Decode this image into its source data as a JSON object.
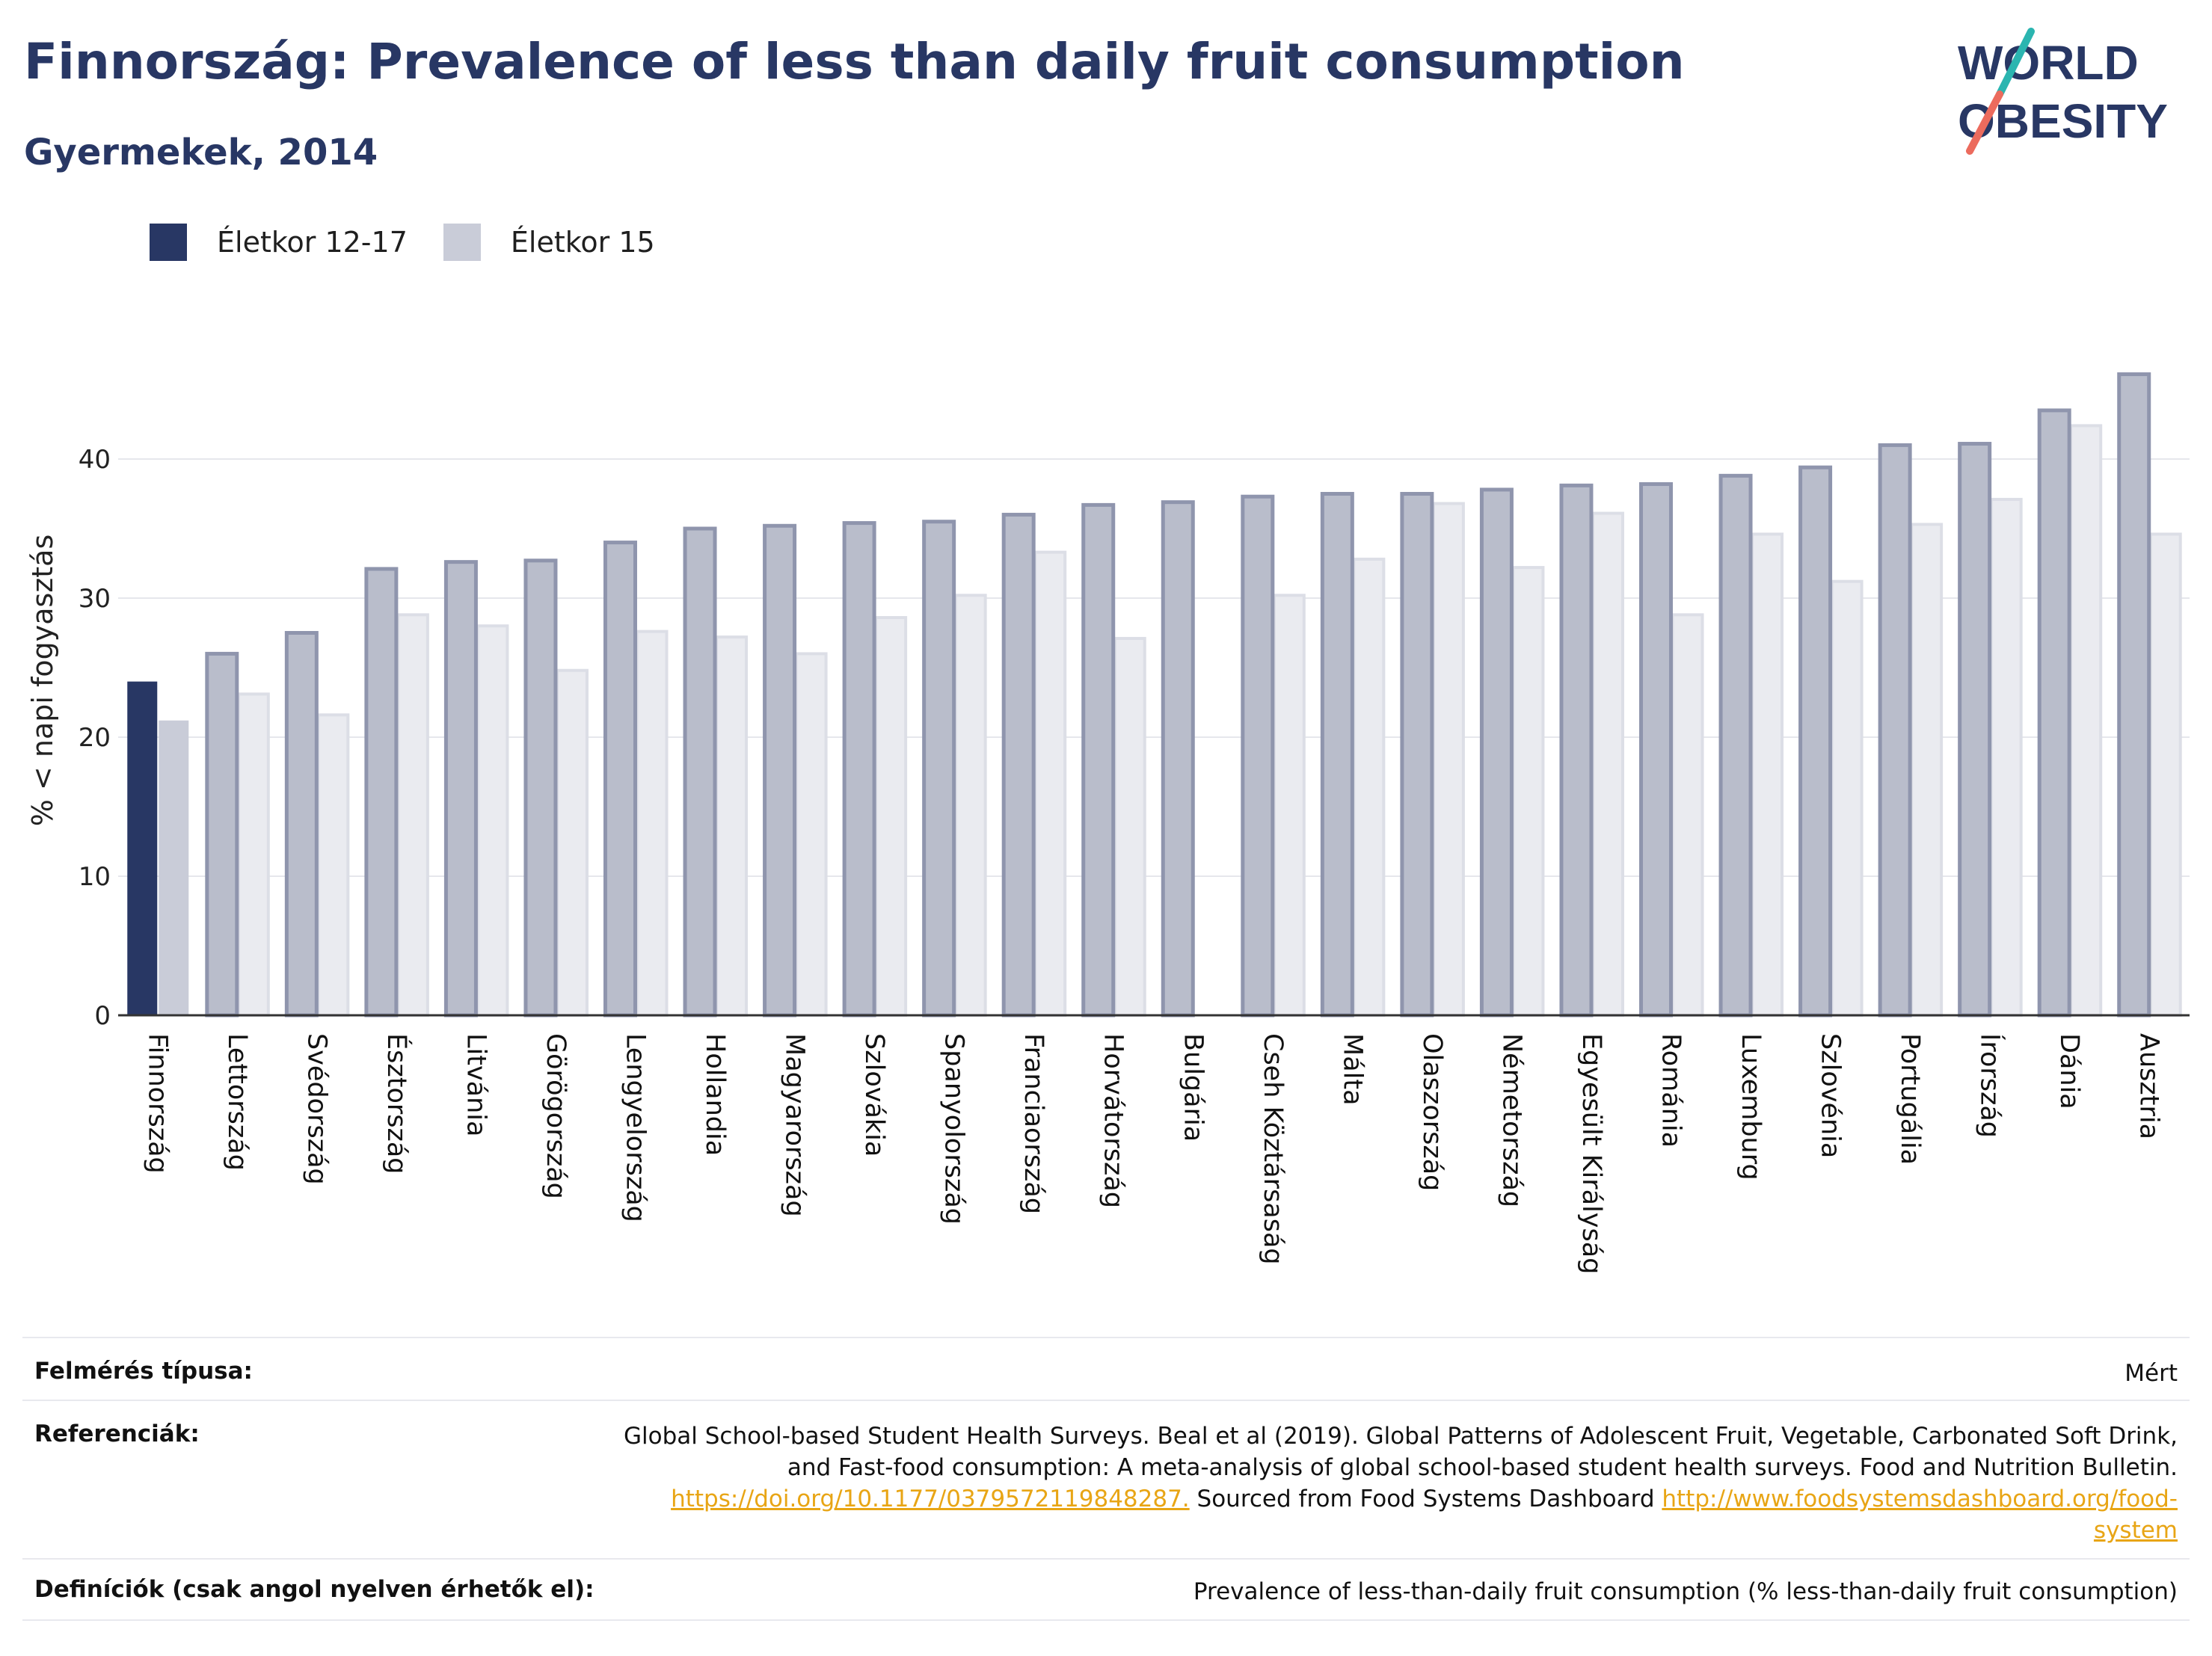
{
  "title": "Finnország: Prevalence of less than daily fruit consumption",
  "subtitle": "Gyermekek, 2014",
  "logo": {
    "line1": "WORLD",
    "line2": "OBESITY"
  },
  "legend": [
    {
      "label": "Életkor 12-17",
      "color": "#283764"
    },
    {
      "label": "Életkor 15",
      "color": "#c9ccd8"
    }
  ],
  "chart_data": {
    "type": "bar",
    "ylabel": "% < napi fogyasztás",
    "ylim": [
      0,
      48
    ],
    "yticks": [
      0,
      10,
      20,
      30,
      40
    ],
    "grid": true,
    "legend_position": "top-left",
    "highlight": "Finnország",
    "categories": [
      "Finnország",
      "Lettország",
      "Svédország",
      "Észtország",
      "Litvánia",
      "Görögország",
      "Lengyelország",
      "Hollandia",
      "Magyarország",
      "Szlovákia",
      "Spanyolország",
      "Franciaország",
      "Horvátország",
      "Bulgária",
      "Cseh Köztársaság",
      "Málta",
      "Olaszország",
      "Németország",
      "Egyesült Királyság",
      "Románia",
      "Luxemburg",
      "Szlovénia",
      "Portugália",
      "Írország",
      "Dánia",
      "Ausztria"
    ],
    "series": [
      {
        "name": "Életkor 12-17",
        "values": [
          24.0,
          26.0,
          27.5,
          32.1,
          32.6,
          32.7,
          34.0,
          35.0,
          35.2,
          35.4,
          35.5,
          36.0,
          36.7,
          36.9,
          37.3,
          37.5,
          37.5,
          37.8,
          38.1,
          38.2,
          38.8,
          39.4,
          41.0,
          41.1,
          43.5,
          46.1
        ]
      },
      {
        "name": "Életkor 15",
        "values": [
          21.2,
          23.1,
          21.6,
          28.8,
          28.0,
          24.8,
          27.6,
          27.2,
          26.0,
          28.6,
          30.2,
          33.3,
          27.1,
          null,
          30.2,
          32.8,
          36.8,
          32.2,
          36.1,
          28.8,
          34.6,
          31.2,
          35.3,
          37.1,
          42.4,
          34.6
        ]
      }
    ],
    "colors": {
      "highlight_primary": "#283764",
      "highlight_secondary": "#c9ccd8",
      "other_primary": "#b9bdcb",
      "other_primary_stroke": "#8f95ad",
      "other_secondary": "#eaebf0",
      "other_secondary_stroke": "#dcdee6"
    }
  },
  "info": {
    "survey_type_label": "Felmérés típusa:",
    "survey_type_value": "Mért",
    "references_label": "Referenciák:",
    "references_text1": "Global School-based Student Health Surveys. Beal et al (2019). Global Patterns of Adolescent Fruit, Vegetable, Carbonated Soft Drink,",
    "references_text2": "and Fast-food consumption: A meta-analysis of global school-based student health surveys. Food and Nutrition Bulletin.",
    "references_link1": "https://doi.org/10.1177/0379572119848287.",
    "references_text3": " Sourced from Food Systems Dashboard ",
    "references_link2a": "http://www.foodsystemsdashboard.org/food-",
    "references_link2b": "system",
    "definitions_label": "Definíciók (csak angol nyelven érhetők el):",
    "definitions_value": "Prevalence of less-than-daily fruit consumption (% less-than-daily fruit consumption)"
  }
}
